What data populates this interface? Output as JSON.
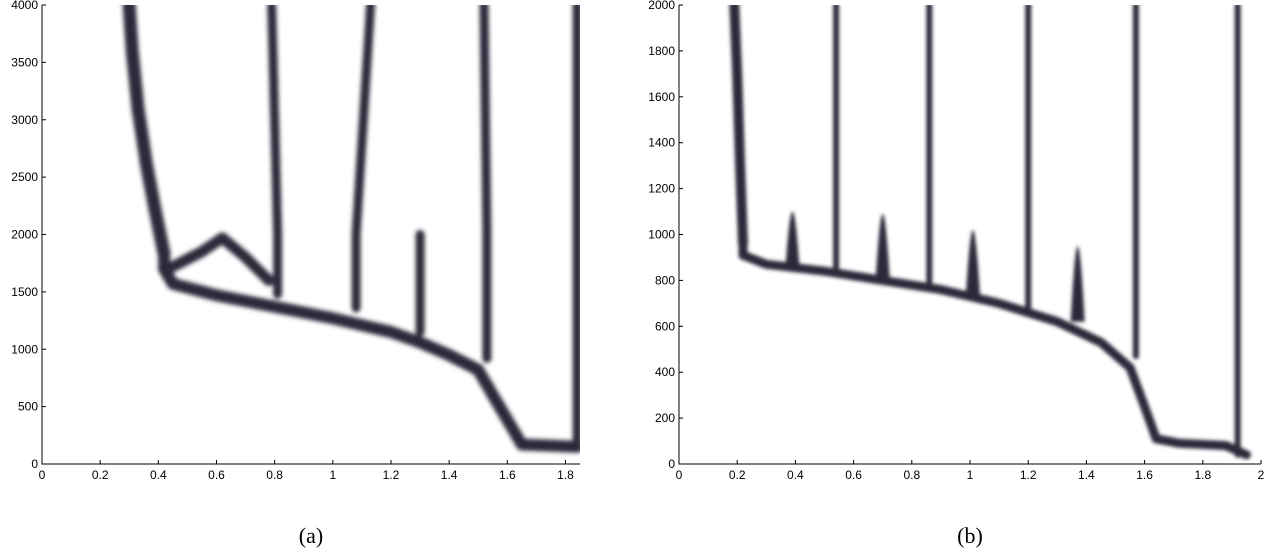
{
  "figure": {
    "captions": [
      "(a)",
      "(b)"
    ]
  },
  "chart_data": [
    {
      "type": "heatmap",
      "caption": "(a)",
      "xlim": [
        0,
        1.85
      ],
      "ylim": [
        0,
        4000
      ],
      "x_ticks": [
        0,
        0.2,
        0.4,
        0.6,
        0.8,
        1,
        1.2,
        1.4,
        1.6,
        1.8
      ],
      "x_tick_labels": [
        "0",
        "0.2",
        "0.4",
        "0.6",
        "0.8",
        "1",
        "1.2",
        "1.4",
        "1.6",
        "1.8"
      ],
      "y_ticks": [
        0,
        500,
        1000,
        1500,
        2000,
        2500,
        3000,
        3500,
        4000
      ],
      "y_tick_labels": [
        "0",
        "500",
        "1000",
        "1500",
        "2000",
        "2500",
        "3000",
        "3500",
        "4000"
      ],
      "grid": false,
      "colormap": "white-to-dark-purple",
      "band_color": "#2a2a3a",
      "main_curve": [
        [
          1.84,
          150
        ],
        [
          1.65,
          170
        ],
        [
          1.62,
          300
        ],
        [
          1.55,
          600
        ],
        [
          1.5,
          820
        ],
        [
          1.4,
          950
        ],
        [
          1.3,
          1060
        ],
        [
          1.2,
          1150
        ],
        [
          1.0,
          1270
        ],
        [
          0.8,
          1370
        ],
        [
          0.6,
          1470
        ],
        [
          0.45,
          1570
        ],
        [
          0.42,
          1700
        ],
        [
          0.42,
          1830
        ]
      ],
      "upper_branch": [
        [
          0.42,
          1830
        ],
        [
          0.39,
          2200
        ],
        [
          0.36,
          2600
        ],
        [
          0.33,
          3100
        ],
        [
          0.31,
          3600
        ],
        [
          0.3,
          4000
        ]
      ],
      "fork_branch": [
        [
          0.45,
          1720
        ],
        [
          0.55,
          1850
        ],
        [
          0.62,
          1970
        ],
        [
          0.7,
          1800
        ],
        [
          0.78,
          1600
        ]
      ],
      "branches": [
        {
          "x": 0.81,
          "from": 1480,
          "to": 2000,
          "x_top": 0.79,
          "top": 4000
        },
        {
          "x": 1.08,
          "from": 1360,
          "to": 2000,
          "x_top": 1.13,
          "top": 4000
        },
        {
          "x": 1.3,
          "from": 1150,
          "to": 2000,
          "x_top": 1.3,
          "top": 2000
        },
        {
          "x": 1.53,
          "from": 920,
          "to": 2000,
          "x_top": 1.52,
          "top": 4000
        },
        {
          "x": 1.84,
          "from": 150,
          "to": 4000,
          "x_top": 1.84,
          "top": 4000
        }
      ]
    },
    {
      "type": "heatmap",
      "caption": "(b)",
      "xlim": [
        0,
        2
      ],
      "ylim": [
        0,
        2000
      ],
      "x_ticks": [
        0,
        0.2,
        0.4,
        0.6,
        0.8,
        1,
        1.2,
        1.4,
        1.6,
        1.8,
        2
      ],
      "x_tick_labels": [
        "0",
        "0.2",
        "0.4",
        "0.6",
        "0.8",
        "1",
        "1.2",
        "1.4",
        "1.6",
        "1.8",
        "2"
      ],
      "y_ticks": [
        0,
        200,
        400,
        600,
        800,
        1000,
        1200,
        1400,
        1600,
        1800,
        2000
      ],
      "y_tick_labels": [
        "0",
        "200",
        "400",
        "600",
        "800",
        "1000",
        "1200",
        "1400",
        "1600",
        "1800",
        "2000"
      ],
      "grid": false,
      "colormap": "white-to-dark-purple",
      "band_color": "#2a2a3a",
      "main_curve": [
        [
          1.95,
          40
        ],
        [
          1.88,
          80
        ],
        [
          1.72,
          90
        ],
        [
          1.64,
          110
        ],
        [
          1.6,
          250
        ],
        [
          1.55,
          420
        ],
        [
          1.45,
          530
        ],
        [
          1.3,
          620
        ],
        [
          1.1,
          700
        ],
        [
          0.9,
          760
        ],
        [
          0.7,
          800
        ],
        [
          0.5,
          840
        ],
        [
          0.3,
          870
        ],
        [
          0.22,
          910
        ],
        [
          0.22,
          960
        ]
      ],
      "upper_branch": [
        [
          0.22,
          960
        ],
        [
          0.21,
          1300
        ],
        [
          0.2,
          1700
        ],
        [
          0.19,
          2000
        ]
      ],
      "bubbles": [
        {
          "x": 0.39,
          "base": 860,
          "top": 1100
        },
        {
          "x": 0.7,
          "base": 810,
          "top": 1090
        },
        {
          "x": 1.01,
          "base": 740,
          "top": 1020
        },
        {
          "x": 1.37,
          "base": 620,
          "top": 950
        }
      ],
      "branches": [
        {
          "x": 0.54,
          "from": 840,
          "to": 2000
        },
        {
          "x": 0.86,
          "from": 780,
          "to": 2000
        },
        {
          "x": 1.2,
          "from": 680,
          "to": 2000
        },
        {
          "x": 1.57,
          "from": 470,
          "to": 2000
        },
        {
          "x": 1.92,
          "from": 40,
          "to": 2000
        }
      ]
    }
  ]
}
